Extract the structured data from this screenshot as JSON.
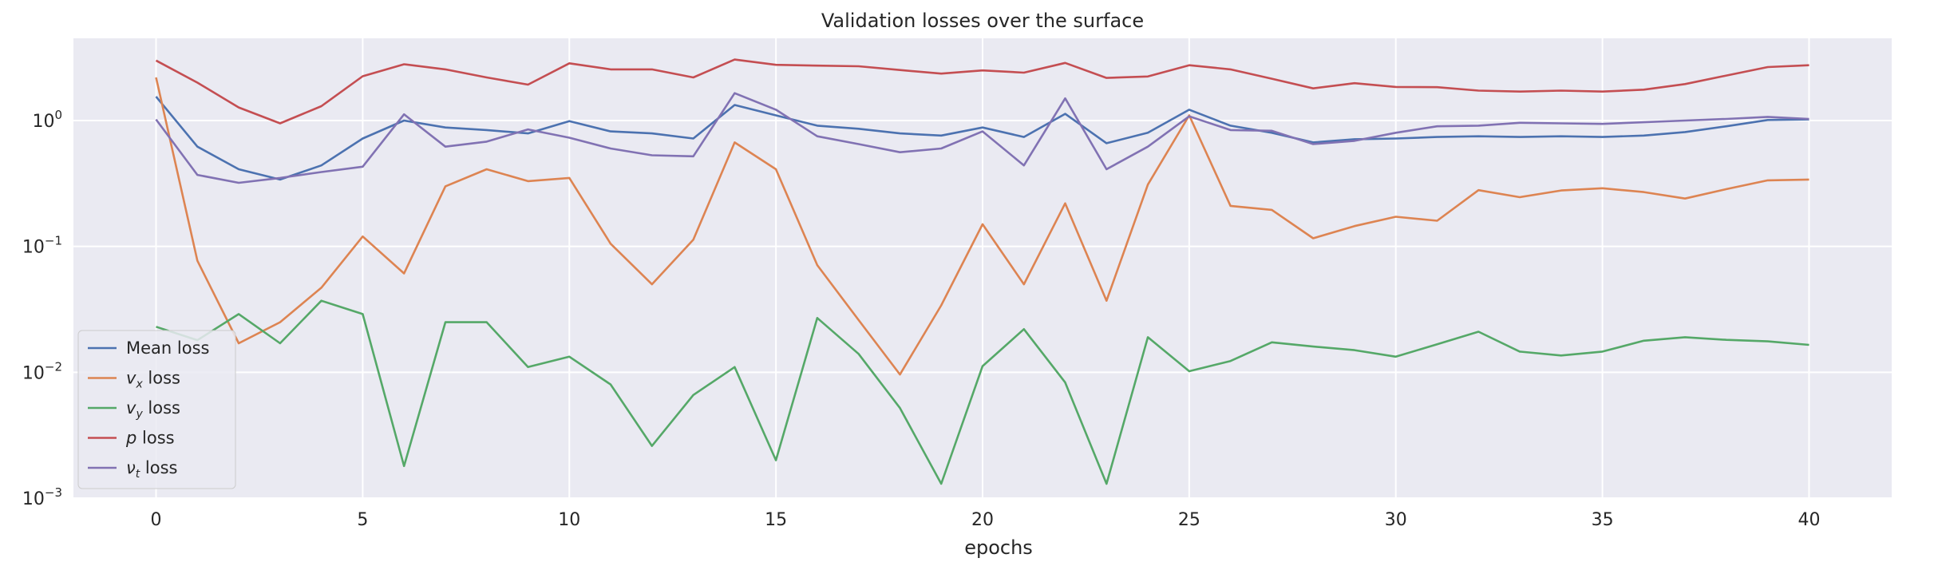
{
  "chart_data": {
    "type": "line",
    "title": "Validation losses over the surface",
    "xlabel": "epochs",
    "ylabel": "",
    "yscale": "log",
    "xlim": [
      -2,
      42
    ],
    "ylim": [
      0.001,
      4.5
    ],
    "xticks": [
      0,
      5,
      10,
      15,
      20,
      25,
      30,
      35,
      40
    ],
    "yticks": [
      {
        "value": 0.001,
        "base": "10",
        "exp": "−3"
      },
      {
        "value": 0.01,
        "base": "10",
        "exp": "−2"
      },
      {
        "value": 0.1,
        "base": "10",
        "exp": "−1"
      },
      {
        "value": 1,
        "base": "10",
        "exp": "0"
      }
    ],
    "grid": true,
    "legend_position": "lower-left",
    "background": "#eaeaf2",
    "x": [
      0,
      1,
      2,
      3,
      4,
      5,
      6,
      7,
      8,
      9,
      10,
      11,
      12,
      13,
      14,
      15,
      16,
      17,
      18,
      19,
      20,
      21,
      22,
      23,
      24,
      25,
      26,
      27,
      28,
      29,
      30,
      31,
      32,
      33,
      34,
      35,
      36,
      37,
      38,
      39,
      40
    ],
    "series": [
      {
        "name": "Mean loss",
        "sym": "",
        "sub": "",
        "suffix": "Mean loss",
        "color": "#4c72b0",
        "values": [
          1.55,
          0.62,
          0.41,
          0.34,
          0.44,
          0.72,
          1.0,
          0.88,
          0.84,
          0.79,
          0.99,
          0.82,
          0.79,
          0.72,
          1.33,
          1.1,
          0.91,
          0.86,
          0.79,
          0.76,
          0.88,
          0.74,
          1.13,
          0.66,
          0.8,
          1.22,
          0.91,
          0.8,
          0.67,
          0.71,
          0.72,
          0.74,
          0.75,
          0.74,
          0.75,
          0.74,
          0.76,
          0.81,
          0.9,
          1.01,
          1.02
        ]
      },
      {
        "name": "vx loss",
        "sym": "v",
        "sub": "x",
        "suffix": " loss",
        "color": "#dd8452",
        "values": [
          2.2,
          0.077,
          0.017,
          0.025,
          0.047,
          0.12,
          0.061,
          0.3,
          0.41,
          0.33,
          0.35,
          0.105,
          0.05,
          0.113,
          0.67,
          0.41,
          0.071,
          0.026,
          0.0096,
          0.034,
          0.15,
          0.05,
          0.22,
          0.037,
          0.31,
          1.1,
          0.21,
          0.195,
          0.116,
          0.145,
          0.172,
          0.16,
          0.28,
          0.246,
          0.278,
          0.29,
          0.27,
          0.24,
          0.285,
          0.335,
          0.34
        ]
      },
      {
        "name": "vy loss",
        "sym": "v",
        "sub": "y",
        "suffix": " loss",
        "color": "#55a868",
        "values": [
          0.023,
          0.018,
          0.029,
          0.017,
          0.037,
          0.029,
          0.0018,
          0.025,
          0.025,
          0.011,
          0.0133,
          0.008,
          0.0026,
          0.0066,
          0.011,
          0.002,
          0.027,
          0.014,
          0.0052,
          0.0013,
          0.0112,
          0.022,
          0.0083,
          0.0013,
          0.019,
          0.0102,
          0.0123,
          0.0173,
          0.016,
          0.015,
          0.0133,
          0.0167,
          0.021,
          0.0146,
          0.0136,
          0.0146,
          0.0178,
          0.019,
          0.0181,
          0.0176,
          0.0165
        ]
      },
      {
        "name": "p loss",
        "sym": "p",
        "sub": "",
        "suffix": " loss",
        "color": "#c44e52",
        "values": [
          3.0,
          2.0,
          1.27,
          0.95,
          1.3,
          2.25,
          2.8,
          2.55,
          2.2,
          1.93,
          2.85,
          2.55,
          2.55,
          2.2,
          3.05,
          2.77,
          2.73,
          2.7,
          2.52,
          2.36,
          2.5,
          2.4,
          2.87,
          2.18,
          2.24,
          2.75,
          2.55,
          2.15,
          1.8,
          1.98,
          1.85,
          1.84,
          1.73,
          1.7,
          1.73,
          1.7,
          1.76,
          1.95,
          2.28,
          2.66,
          2.75
        ]
      },
      {
        "name": "νt loss",
        "sym": "ν",
        "sub": "t",
        "suffix": " loss",
        "color": "#8172b3",
        "values": [
          1.02,
          0.37,
          0.32,
          0.35,
          0.39,
          0.43,
          1.12,
          0.62,
          0.68,
          0.85,
          0.73,
          0.6,
          0.53,
          0.52,
          1.65,
          1.22,
          0.75,
          0.65,
          0.56,
          0.6,
          0.82,
          0.44,
          1.5,
          0.41,
          0.62,
          1.08,
          0.84,
          0.83,
          0.65,
          0.69,
          0.8,
          0.9,
          0.91,
          0.96,
          0.95,
          0.94,
          0.97,
          1.0,
          1.03,
          1.07,
          1.03
        ]
      }
    ]
  }
}
